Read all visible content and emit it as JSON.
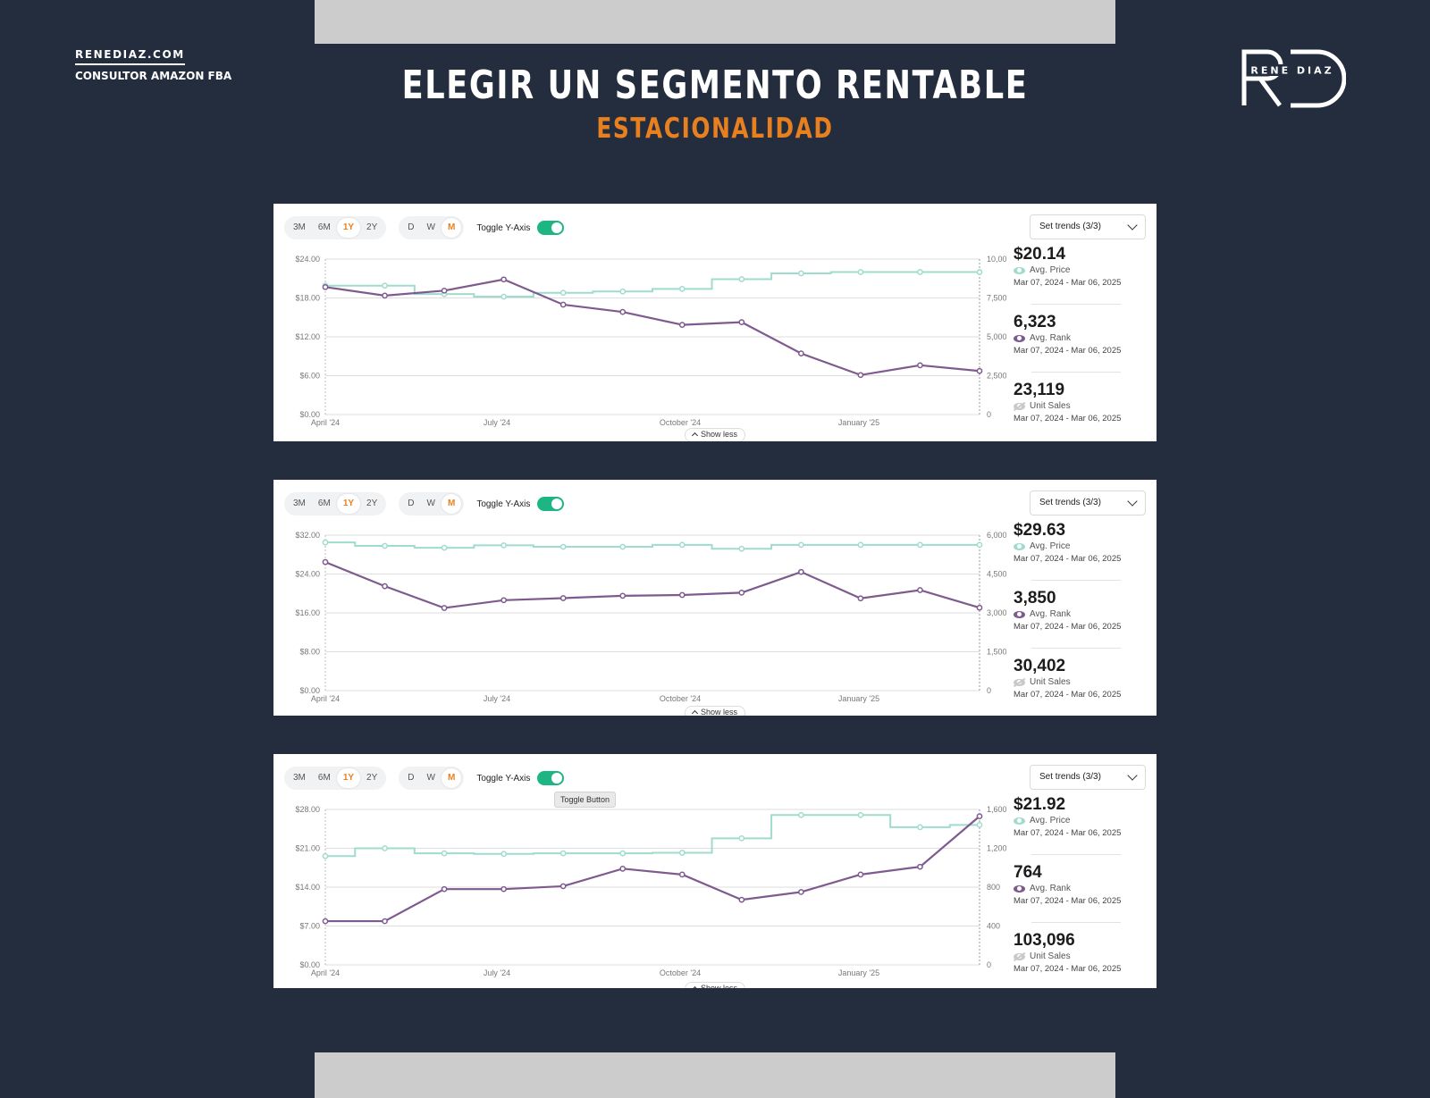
{
  "header": {
    "site": "RENEDIAZ.COM",
    "tagline": "CONSULTOR AMAZON FBA",
    "title": "ELEGIR UN SEGMENTO RENTABLE",
    "subtitle": "ESTACIONALIDAD",
    "logo_text": "RENE DIAZ",
    "logo_letters": "RD"
  },
  "controls": {
    "ranges": [
      "3M",
      "6M",
      "1Y",
      "2Y"
    ],
    "active_range": "1Y",
    "intervals": [
      "D",
      "W",
      "M"
    ],
    "active_interval": "M",
    "toggle_label": "Toggle Y-Axis",
    "toggle_on": true,
    "trends_select": "Set trends (3/3)",
    "show_less": "Show less",
    "tooltip": "Toggle Button"
  },
  "colors": {
    "price": "#9fdccd",
    "rank": "#7e5a8f",
    "accent": "#e9801f",
    "toggle": "#1db584",
    "background": "#232d3e"
  },
  "panels": [
    {
      "stats": [
        {
          "value": "$20.14",
          "label": "Avg. Price",
          "range": "Mar 07, 2024 - Mar 06, 2025",
          "icon": "eye-icon"
        },
        {
          "value": "6,323",
          "label": "Avg. Rank",
          "range": "Mar 07, 2024 - Mar 06, 2025",
          "icon": "eye-icon"
        },
        {
          "value": "23,119",
          "label": "Unit Sales",
          "range": "Mar 07, 2024 - Mar 06, 2025",
          "icon": "eye-slash-icon"
        }
      ],
      "chart_data": {
        "type": "line",
        "x_ticks": [
          "April '24",
          "July '24",
          "October '24",
          "January '25"
        ],
        "left_ticks": [
          "$0.00",
          "$6.00",
          "$12.00",
          "$18.00",
          "$24.00"
        ],
        "right_ticks": [
          "0",
          "2,500",
          "5,000",
          "7,500",
          "10,000"
        ],
        "ylim_left": [
          0,
          24
        ],
        "ylim_right": [
          0,
          10000
        ],
        "grid": true,
        "series": [
          {
            "key": "price",
            "axis": "left",
            "step": true,
            "values": [
              19.9,
              19.9,
              18.6,
              18.2,
              18.8,
              19.0,
              19.4,
              20.9,
              21.8,
              22.0,
              22.0,
              22.0
            ]
          },
          {
            "key": "rank",
            "axis": "right",
            "step": false,
            "values": [
              8200,
              7650,
              7970,
              8690,
              7070,
              6600,
              5770,
              5940,
              3930,
              2540,
              3170,
              2800
            ]
          }
        ]
      }
    },
    {
      "stats": [
        {
          "value": "$29.63",
          "label": "Avg. Price",
          "range": "Mar 07, 2024 - Mar 06, 2025",
          "icon": "eye-icon"
        },
        {
          "value": "3,850",
          "label": "Avg. Rank",
          "range": "Mar 07, 2024 - Mar 06, 2025",
          "icon": "eye-icon"
        },
        {
          "value": "30,402",
          "label": "Unit Sales",
          "range": "Mar 07, 2024 - Mar 06, 2025",
          "icon": "eye-slash-icon"
        }
      ],
      "chart_data": {
        "type": "line",
        "x_ticks": [
          "April '24",
          "July '24",
          "October '24",
          "January '25"
        ],
        "left_ticks": [
          "$0.00",
          "$8.00",
          "$16.00",
          "$24.00",
          "$32.00"
        ],
        "right_ticks": [
          "0",
          "1,500",
          "3,000",
          "4,500",
          "6,000"
        ],
        "ylim_left": [
          0,
          32
        ],
        "ylim_right": [
          0,
          6000
        ],
        "grid": true,
        "series": [
          {
            "key": "price",
            "axis": "left",
            "step": true,
            "values": [
              30.5,
              29.8,
              29.4,
              29.9,
              29.6,
              29.6,
              30.0,
              29.2,
              30.0,
              30.0,
              30.0,
              30.0
            ]
          },
          {
            "key": "rank",
            "axis": "right",
            "step": false,
            "values": [
              4960,
              4030,
              3190,
              3490,
              3570,
              3660,
              3690,
              3780,
              4580,
              3560,
              3880,
              3200
            ]
          }
        ]
      }
    },
    {
      "stats": [
        {
          "value": "$21.92",
          "label": "Avg. Price",
          "range": "Mar 07, 2024 - Mar 06, 2025",
          "icon": "eye-icon"
        },
        {
          "value": "764",
          "label": "Avg. Rank",
          "range": "Mar 07, 2024 - Mar 06, 2025",
          "icon": "eye-icon"
        },
        {
          "value": "103,096",
          "label": "Unit Sales",
          "range": "Mar 07, 2024 - Mar 06, 2025",
          "icon": "eye-slash-icon"
        }
      ],
      "chart_data": {
        "type": "line",
        "x_ticks": [
          "April '24",
          "July '24",
          "October '24",
          "January '25"
        ],
        "left_ticks": [
          "$0.00",
          "$7.00",
          "$14.00",
          "$21.00",
          "$28.00"
        ],
        "right_ticks": [
          "0",
          "400",
          "800",
          "1,200",
          "1,600"
        ],
        "ylim_left": [
          0,
          28
        ],
        "ylim_right": [
          0,
          1600
        ],
        "grid": true,
        "series": [
          {
            "key": "price",
            "axis": "left",
            "step": true,
            "values": [
              19.6,
              21.0,
              20.1,
              20.0,
              20.1,
              20.1,
              20.2,
              22.8,
              27.0,
              27.0,
              24.8,
              25.2
            ]
          },
          {
            "key": "rank",
            "axis": "right",
            "step": false,
            "values": [
              450,
              450,
              780,
              780,
              810,
              990,
              930,
              670,
              750,
              930,
              1010,
              1530
            ]
          }
        ]
      }
    }
  ]
}
